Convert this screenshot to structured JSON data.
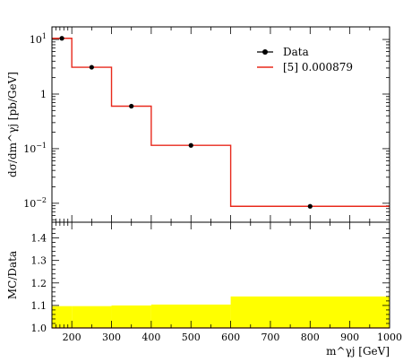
{
  "chart_data": [
    {
      "type": "line",
      "ylabel": "dσ/dm^γj [pb/GeV]",
      "yscale": "log",
      "ylim": [
        0.0045,
        17
      ],
      "xlim": [
        150,
        1000
      ],
      "bin_edges": [
        150,
        200,
        300,
        400,
        600,
        1000
      ],
      "yticks": [
        {
          "label": "10",
          "exp": "1",
          "value": 10
        },
        {
          "label": "1",
          "exp": "",
          "value": 1
        },
        {
          "label": "10",
          "exp": "−1",
          "value": 0.1
        },
        {
          "label": "10",
          "exp": "−2",
          "value": 0.01
        }
      ],
      "legend": {
        "placement": "top-right",
        "entries": [
          "Data",
          "[5] 0.000879"
        ]
      },
      "series": [
        {
          "name": "Data",
          "style": "points",
          "color": "#000000",
          "x": [
            175,
            250,
            350,
            500,
            800
          ],
          "values": [
            10.5,
            3.1,
            0.6,
            0.115,
            0.0088
          ]
        },
        {
          "name": "[5] 0.000879",
          "style": "step",
          "color": "#e8291c",
          "values": [
            10.5,
            3.1,
            0.6,
            0.115,
            0.0088
          ]
        }
      ]
    },
    {
      "type": "area",
      "ylabel": "MC/Data",
      "xlabel": "m^γj [GeV]",
      "xlim": [
        150,
        1000
      ],
      "ylim": [
        1.0,
        1.47
      ],
      "xticks": [
        "200",
        "300",
        "400",
        "500",
        "600",
        "700",
        "800",
        "900",
        "1000"
      ],
      "xtick_values": [
        200,
        300,
        400,
        500,
        600,
        700,
        800,
        900,
        1000
      ],
      "yticks": [
        "1.0",
        "1.1",
        "1.2",
        "1.3",
        "1.4"
      ],
      "ytick_values": [
        1.0,
        1.1,
        1.2,
        1.3,
        1.4
      ],
      "band_color": "#ffff00",
      "bin_edges": [
        150,
        200,
        300,
        400,
        600,
        1000
      ],
      "band_low": [
        1.0,
        1.0,
        1.0,
        1.0,
        1.0
      ],
      "band_high": [
        1.097,
        1.097,
        1.1,
        1.104,
        1.14
      ],
      "ratio_values": [
        1.0,
        1.0,
        1.0,
        1.0,
        1.0
      ]
    }
  ]
}
